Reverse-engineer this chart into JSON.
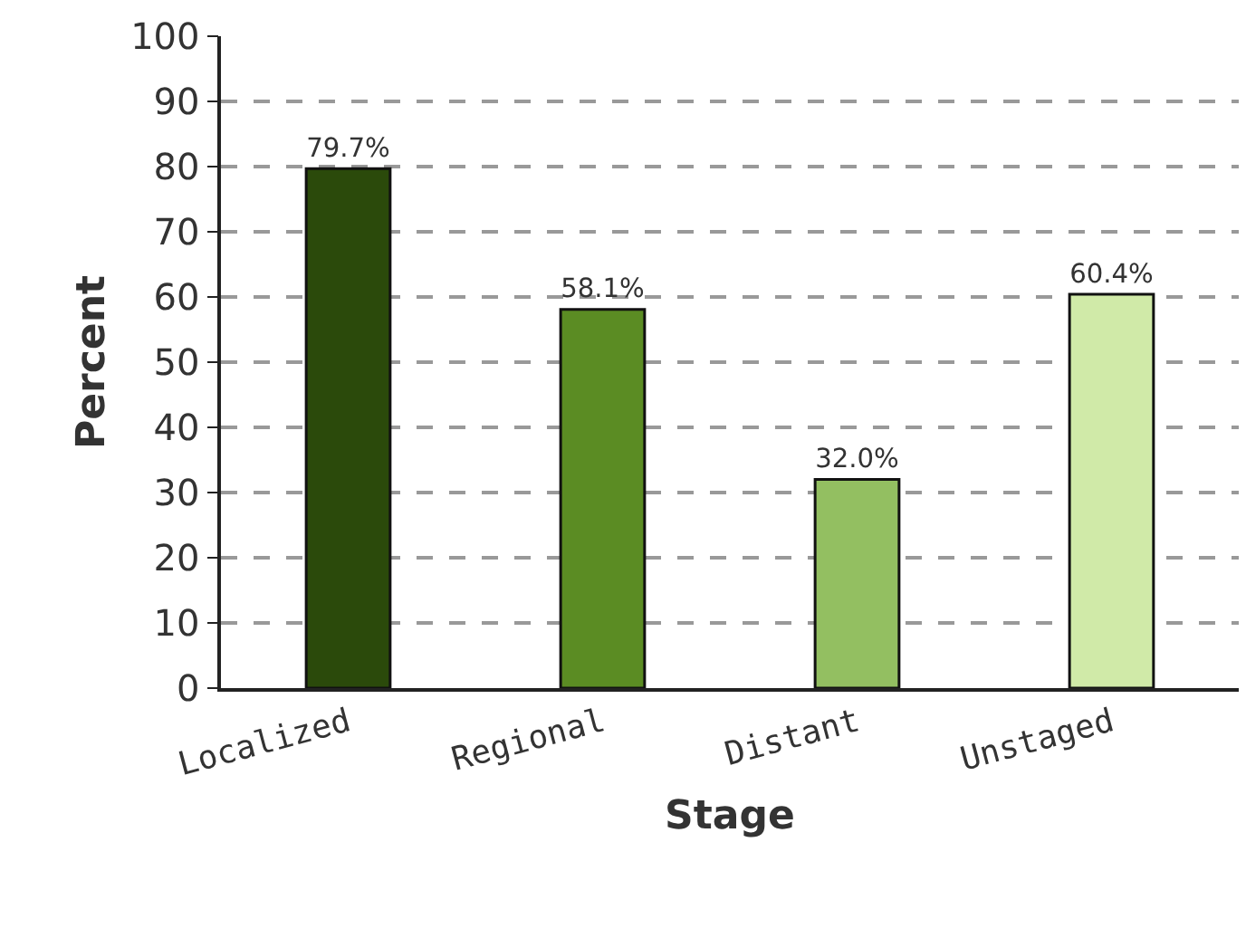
{
  "chart_data": {
    "type": "bar",
    "xlabel": "Stage",
    "ylabel": "Percent",
    "categories": [
      "Localized",
      "Regional",
      "Distant",
      "Unstaged"
    ],
    "values": [
      79.7,
      58.1,
      32.0,
      60.4
    ],
    "colors": [
      "#2b4a0b",
      "#5b8c23",
      "#93bf61",
      "#d0eaa8"
    ],
    "value_labels": [
      "79.7%",
      "58.1%",
      "32.0%",
      "60.4%"
    ],
    "ylim": [
      0,
      100
    ],
    "yticks": [
      0,
      10,
      20,
      30,
      40,
      50,
      60,
      70,
      80,
      90,
      100
    ],
    "grid": "y",
    "line_style": "dashed",
    "legend": false
  }
}
